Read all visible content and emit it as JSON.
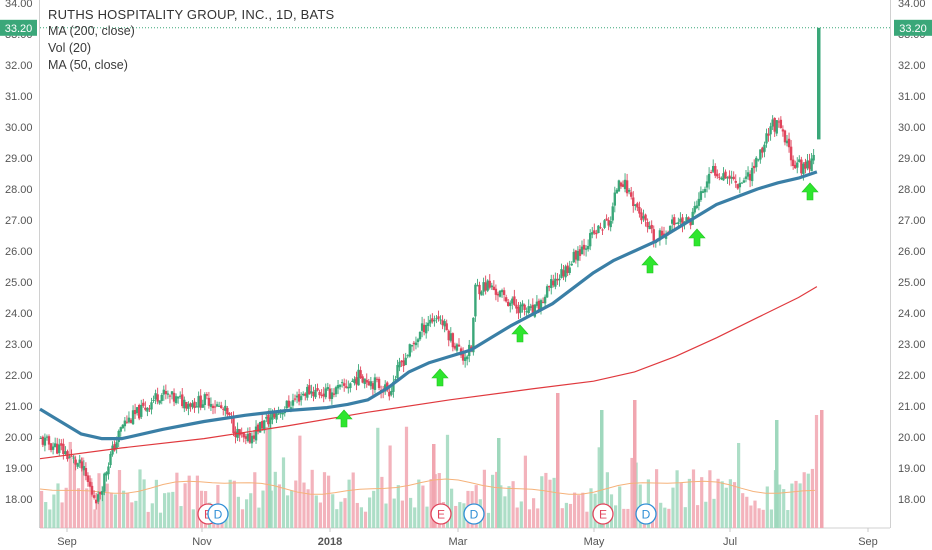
{
  "chart_data": {
    "type": "candlestick",
    "title": "RUTHS HOSPITALITY GROUP, INC., 1D, BATS",
    "indicators": [
      "MA (200, close)",
      "Vol (20)",
      "MA (50, close)"
    ],
    "ylim": [
      17.5,
      34.0
    ],
    "y_ticks": [
      "34.00",
      "33.00",
      "32.00",
      "31.00",
      "30.00",
      "29.00",
      "28.00",
      "27.00",
      "26.00",
      "25.00",
      "24.00",
      "23.00",
      "22.00",
      "21.00",
      "20.00",
      "19.00",
      "18.00"
    ],
    "x_ticks": [
      "Sep",
      "Nov",
      "2018",
      "Mar",
      "May",
      "Jul",
      "Sep"
    ],
    "last_price_label": "33.20",
    "last_price": 33.2,
    "price_path": [
      [
        0,
        19.9
      ],
      [
        10,
        19.6
      ],
      [
        20,
        19.0
      ],
      [
        25,
        18.2
      ],
      [
        28,
        18.0
      ],
      [
        33,
        19.2
      ],
      [
        40,
        20.4
      ],
      [
        50,
        20.9
      ],
      [
        58,
        21.4
      ],
      [
        66,
        21.2
      ],
      [
        74,
        21.1
      ],
      [
        82,
        21.2
      ],
      [
        90,
        20.8
      ],
      [
        96,
        20.1
      ],
      [
        100,
        19.8
      ],
      [
        106,
        20.3
      ],
      [
        112,
        20.6
      ],
      [
        120,
        21.0
      ],
      [
        130,
        21.5
      ],
      [
        140,
        21.4
      ],
      [
        148,
        21.6
      ],
      [
        156,
        22.0
      ],
      [
        164,
        21.7
      ],
      [
        170,
        21.5
      ],
      [
        176,
        22.4
      ],
      [
        182,
        23.0
      ],
      [
        188,
        23.7
      ],
      [
        194,
        23.9
      ],
      [
        200,
        23.2
      ],
      [
        206,
        22.6
      ],
      [
        210,
        22.8
      ],
      [
        212,
        24.8
      ],
      [
        218,
        24.9
      ],
      [
        224,
        24.6
      ],
      [
        230,
        24.3
      ],
      [
        236,
        24.1
      ],
      [
        240,
        24.0
      ],
      [
        244,
        24.3
      ],
      [
        250,
        25.0
      ],
      [
        256,
        25.4
      ],
      [
        262,
        26.0
      ],
      [
        268,
        26.4
      ],
      [
        274,
        26.8
      ],
      [
        278,
        27.0
      ],
      [
        282,
        28.4
      ],
      [
        286,
        28.0
      ],
      [
        290,
        27.5
      ],
      [
        296,
        26.7
      ],
      [
        300,
        26.3
      ],
      [
        304,
        26.6
      ],
      [
        310,
        27.0
      ],
      [
        316,
        26.9
      ],
      [
        322,
        27.8
      ],
      [
        328,
        28.6
      ],
      [
        334,
        28.5
      ],
      [
        340,
        28.2
      ],
      [
        346,
        28.5
      ],
      [
        352,
        29.3
      ],
      [
        356,
        30.1
      ],
      [
        360,
        30.0
      ],
      [
        364,
        29.4
      ],
      [
        368,
        28.8
      ],
      [
        372,
        28.7
      ],
      [
        376,
        28.9
      ],
      [
        378,
        29.6
      ],
      [
        379,
        33.2
      ]
    ],
    "ma50_path": [
      [
        0,
        20.9
      ],
      [
        10,
        20.5
      ],
      [
        20,
        20.1
      ],
      [
        30,
        19.95
      ],
      [
        40,
        19.95
      ],
      [
        60,
        20.25
      ],
      [
        80,
        20.5
      ],
      [
        100,
        20.7
      ],
      [
        120,
        20.85
      ],
      [
        140,
        20.95
      ],
      [
        150,
        21.05
      ],
      [
        160,
        21.2
      ],
      [
        170,
        21.6
      ],
      [
        180,
        22.1
      ],
      [
        190,
        22.4
      ],
      [
        200,
        22.6
      ],
      [
        210,
        22.8
      ],
      [
        220,
        23.2
      ],
      [
        230,
        23.6
      ],
      [
        240,
        23.95
      ],
      [
        250,
        24.3
      ],
      [
        260,
        24.8
      ],
      [
        270,
        25.3
      ],
      [
        280,
        25.7
      ],
      [
        290,
        26.0
      ],
      [
        300,
        26.3
      ],
      [
        310,
        26.7
      ],
      [
        320,
        27.1
      ],
      [
        330,
        27.5
      ],
      [
        340,
        27.75
      ],
      [
        350,
        28.0
      ],
      [
        360,
        28.2
      ],
      [
        370,
        28.35
      ],
      [
        379,
        28.55
      ]
    ],
    "ma200_path": [
      [
        0,
        19.3
      ],
      [
        40,
        19.65
      ],
      [
        80,
        19.95
      ],
      [
        120,
        20.35
      ],
      [
        160,
        20.8
      ],
      [
        200,
        21.2
      ],
      [
        240,
        21.55
      ],
      [
        270,
        21.8
      ],
      [
        290,
        22.1
      ],
      [
        310,
        22.6
      ],
      [
        330,
        23.2
      ],
      [
        350,
        23.85
      ],
      [
        370,
        24.5
      ],
      [
        379,
        24.85
      ]
    ],
    "volume_max": 1.0,
    "earnings_markers": [
      "E",
      "D",
      "E",
      "D",
      "E",
      "D"
    ]
  }
}
